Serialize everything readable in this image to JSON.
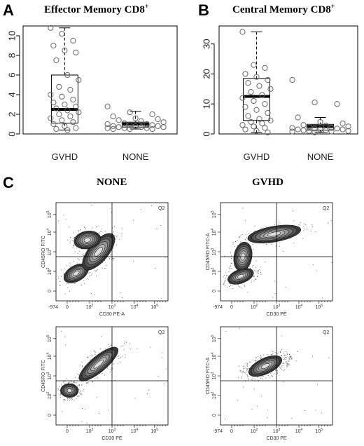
{
  "panels": {
    "a_letter": "A",
    "b_letter": "B",
    "c_letter": "C"
  },
  "chart_data": [
    {
      "type": "box",
      "title": "Effector Memory CD8",
      "title_sup": "+",
      "categories": [
        "GVHD",
        "NONE"
      ],
      "ylim": [
        0,
        11
      ],
      "yticks": [
        0,
        2,
        4,
        6,
        8,
        10
      ],
      "boxes": [
        {
          "category": "GVHD",
          "min": 0.4,
          "q1": 1.1,
          "median": 2.5,
          "q3": 6.0,
          "max": 10.8
        },
        {
          "category": "NONE",
          "min": 0.5,
          "q1": 0.7,
          "median": 1.0,
          "q3": 1.2,
          "max": 2.3
        }
      ],
      "points": [
        {
          "category": "GVHD",
          "values": [
            10.8,
            10.2,
            9.5,
            9.0,
            8.5,
            8.3,
            7.5,
            6.0,
            5.5,
            4.8,
            4.5,
            4.0,
            3.8,
            3.5,
            3.2,
            3.0,
            2.8,
            2.6,
            2.4,
            2.2,
            2.0,
            1.8,
            1.6,
            1.4,
            1.2,
            1.0,
            0.8,
            0.6,
            0.5,
            0.4
          ]
        },
        {
          "category": "NONE",
          "values": [
            2.8,
            2.2,
            2.0,
            1.8,
            1.6,
            1.5,
            1.4,
            1.3,
            1.2,
            1.1,
            1.0,
            1.0,
            0.9,
            0.9,
            0.8,
            0.8,
            0.8,
            0.7,
            0.7,
            0.7,
            0.6,
            0.6,
            0.6,
            0.5,
            0.5,
            0.5
          ]
        }
      ]
    },
    {
      "type": "box",
      "title": "Central Memory CD8",
      "title_sup": "+",
      "categories": [
        "GVHD",
        "NONE"
      ],
      "ylim": [
        0,
        36
      ],
      "yticks": [
        0,
        10,
        20,
        30
      ],
      "boxes": [
        {
          "category": "GVHD",
          "min": 0.5,
          "q1": 4.5,
          "median": 12.5,
          "q3": 18.5,
          "max": 34.0
        },
        {
          "category": "NONE",
          "min": 0.5,
          "q1": 1.3,
          "median": 2.5,
          "q3": 3.2,
          "max": 5.5
        }
      ],
      "points": [
        {
          "category": "GVHD",
          "values": [
            34.0,
            23.0,
            22.0,
            20.0,
            19.0,
            18.0,
            17.0,
            16.0,
            15.0,
            14.0,
            13.0,
            12.0,
            11.0,
            10.0,
            9.0,
            8.0,
            7.0,
            6.0,
            5.0,
            4.5,
            4.0,
            3.5,
            3.0,
            2.5,
            2.0,
            1.5,
            1.0,
            0.5
          ]
        },
        {
          "category": "NONE",
          "values": [
            18.0,
            10.5,
            10.0,
            5.5,
            4.0,
            3.5,
            3.0,
            2.8,
            2.5,
            2.3,
            2.0,
            2.0,
            1.8,
            1.8,
            1.5,
            1.5,
            1.5,
            1.2,
            1.2,
            1.0,
            1.0,
            0.8,
            0.8,
            0.5
          ]
        }
      ]
    }
  ],
  "flow": {
    "none_title": "NONE",
    "gvhd_title": "GVHD",
    "quadrant_label": "Q2",
    "plots": [
      {
        "ylabel": "CD45RO FITC",
        "xlabel": "CD30 PE-A",
        "neg_label": "-974"
      },
      {
        "ylabel": "CD45RO FITC-A",
        "xlabel": "CD30 PE",
        "neg_label": "-974"
      },
      {
        "ylabel": "CD45RO FITC",
        "xlabel": "CD30 PE",
        "neg_label": ""
      },
      {
        "ylabel": "CD45RO FITC-A",
        "xlabel": "CD30 PE",
        "neg_label": "-974"
      }
    ],
    "tick_labels": [
      "0",
      "10",
      "10",
      "10",
      "10"
    ],
    "tick_exps": [
      "",
      "2",
      "3",
      "4",
      "5"
    ]
  }
}
